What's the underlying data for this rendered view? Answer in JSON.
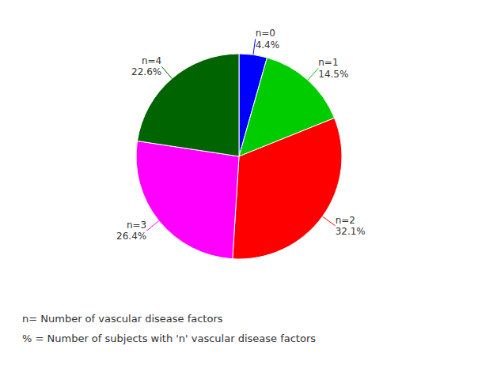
{
  "chart_data": {
    "type": "pie",
    "categories": [
      "n=0",
      "n=1",
      "n=2",
      "n=3",
      "n=4"
    ],
    "values": [
      4.4,
      14.5,
      32.1,
      26.4,
      22.6
    ],
    "value_labels": [
      "4.4%",
      "14.5%",
      "32.1%",
      "26.4%",
      "22.6%"
    ],
    "colors": [
      "#0000FF",
      "#00CC00",
      "#FF0000",
      "#FF00FF",
      "#006400"
    ],
    "data_labels": true,
    "annotations": [
      "n= Number of vascular disease factors",
      "% = Number of subjects with 'n' vascular disease factors"
    ]
  }
}
